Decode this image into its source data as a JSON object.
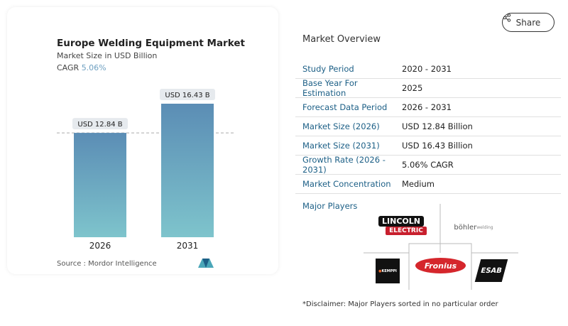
{
  "share_label": "Share",
  "chart_data": {
    "type": "bar",
    "title": "Europe Welding Equipment Market",
    "subtitle": "Market Size in USD Billion",
    "cagr_label": "CAGR",
    "cagr_value": "5.06%",
    "categories": [
      "2026",
      "2031"
    ],
    "values": [
      12.84,
      16.43
    ],
    "data_labels": [
      "USD 12.84 B",
      "USD 16.43 B"
    ],
    "bar_color_top": "#5b8db5",
    "bar_color_bottom": "#7ec4cc",
    "ylim": [
      0,
      16.43
    ],
    "source": "Source :  Mordor Intelligence"
  },
  "overview": {
    "title": "Market Overview",
    "rows": [
      {
        "label": "Study Period",
        "value": "2020 - 2031"
      },
      {
        "label": "Base Year For Estimation",
        "value": "2025"
      },
      {
        "label": "Forecast Data Period",
        "value": "2026 - 2031"
      },
      {
        "label": "Market Size (2026)",
        "value": "USD 12.84 Billion"
      },
      {
        "label": "Market Size (2031)",
        "value": "USD 16.43 Billion"
      },
      {
        "label": "Growth Rate (2026 - 2031)",
        "value": "5.06% CAGR"
      },
      {
        "label": "Market Concentration",
        "value": "Medium"
      }
    ],
    "major_players_label": "Major Players",
    "players": [
      "Lincoln Electric",
      "böhler welding",
      "Kemppi",
      "Fronius",
      "ESAB"
    ],
    "disclaimer": "*Disclaimer: Major Players sorted in no particular order"
  }
}
